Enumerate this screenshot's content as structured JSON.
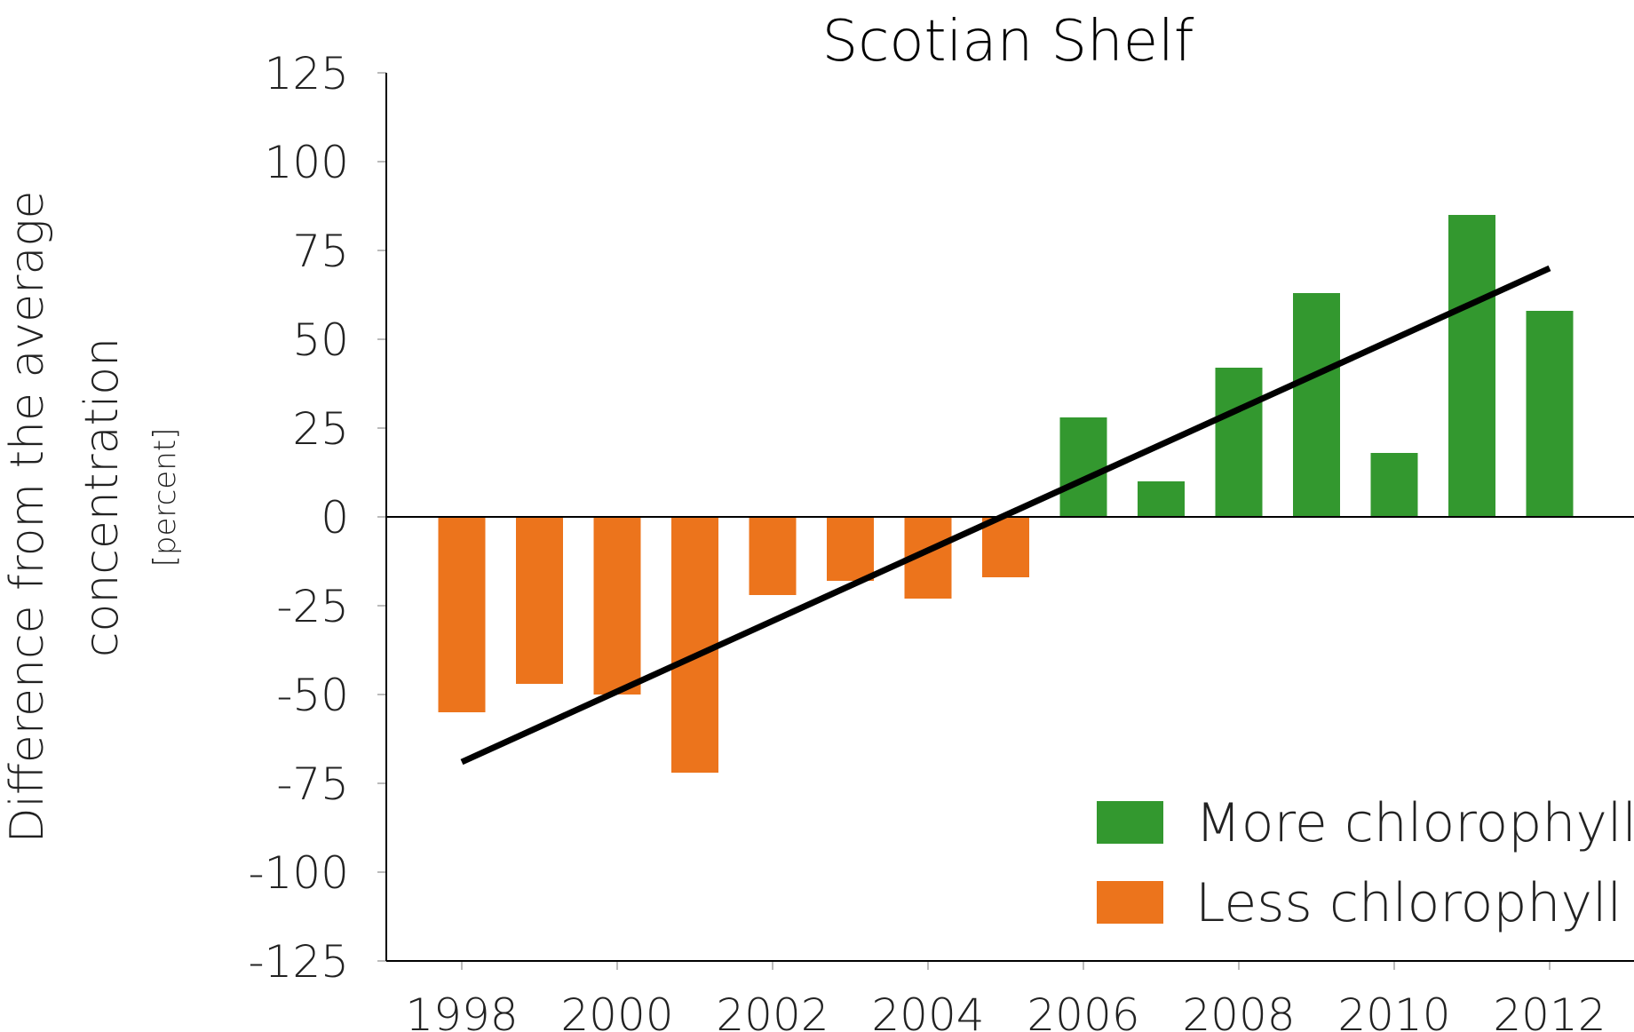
{
  "chart_data": {
    "type": "bar",
    "title": "Scotian Shelf",
    "ylabel_line1": "Difference from the average",
    "ylabel_line2": "concentration",
    "ylabel_unit": "[percent]",
    "xlabel": "",
    "ylim": [
      -125,
      125
    ],
    "yticks": [
      125,
      100,
      75,
      50,
      25,
      0,
      -25,
      -50,
      -75,
      -100,
      -125
    ],
    "xtick_labels": [
      "1998",
      "2000",
      "2002",
      "2004",
      "2006",
      "2008",
      "2010",
      "2012"
    ],
    "categories": [
      "1998",
      "1999",
      "2000",
      "2001",
      "2002",
      "2003",
      "2004",
      "2005",
      "2006",
      "2007",
      "2008",
      "2009",
      "2010",
      "2011",
      "2012"
    ],
    "values": [
      -55,
      -47,
      -50,
      -72,
      -22,
      -18,
      -23,
      -17,
      28,
      10,
      42,
      63,
      18,
      85,
      58
    ],
    "trendline": {
      "start": {
        "x": "1998",
        "y": -69
      },
      "end": {
        "x": "2012",
        "y": 70
      }
    },
    "legend": {
      "position": "bottom-right",
      "items": [
        {
          "label": "More chlorophyll",
          "color": "#33982f"
        },
        {
          "label": "Less chlorophyll",
          "color": "#ec741c"
        }
      ]
    },
    "colors": {
      "positive": "#33982f",
      "negative": "#ec741c",
      "trend": "#000000",
      "axis": "#000000"
    },
    "grid": false
  }
}
